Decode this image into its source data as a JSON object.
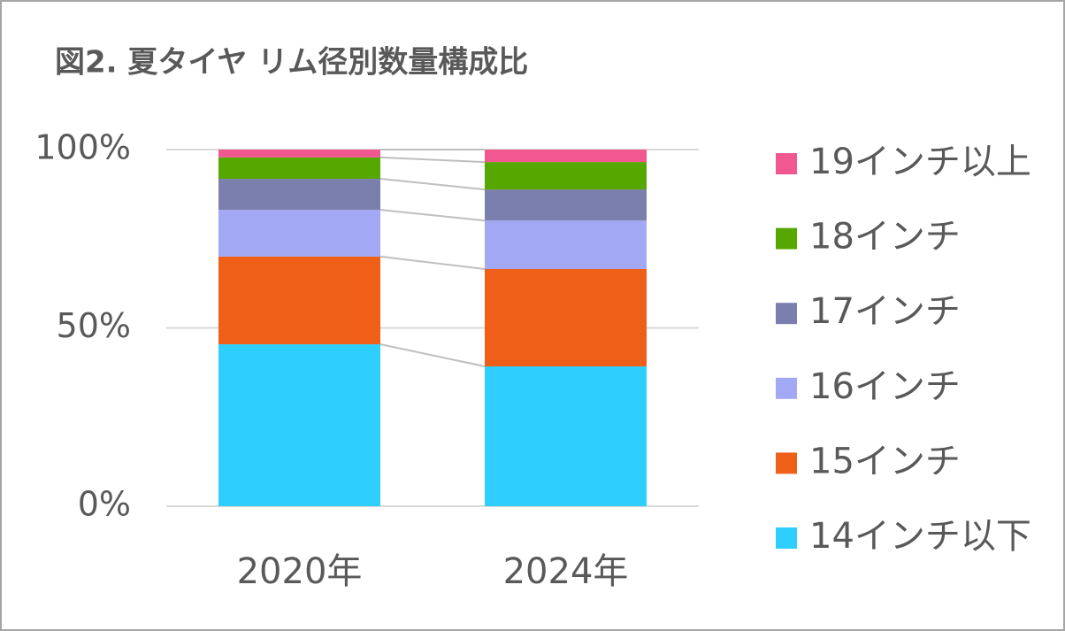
{
  "chart_data": {
    "type": "stacked_bar_100",
    "title": "図2. 夏タイヤ リム径別数量構成比",
    "categories": [
      "2020年",
      "2024年"
    ],
    "series": [
      {
        "name": "14インチ以下",
        "color": "#2ecfff",
        "values": [
          45.4,
          39.2
        ]
      },
      {
        "name": "15インチ",
        "color": "#ef5f18",
        "values": [
          24.6,
          27.3
        ]
      },
      {
        "name": "16インチ",
        "color": "#a3a8f5",
        "values": [
          13.1,
          13.6
        ]
      },
      {
        "name": "17インチ",
        "color": "#7a7fae",
        "values": [
          8.7,
          8.7
        ]
      },
      {
        "name": "18インチ",
        "color": "#56a800",
        "values": [
          6.0,
          7.7
        ]
      },
      {
        "name": "19インチ以上",
        "color": "#f0588f",
        "values": [
          2.2,
          3.5
        ]
      }
    ],
    "ylim": [
      0,
      100
    ],
    "yticks": [
      {
        "value": 0,
        "label": "0%"
      },
      {
        "value": 50,
        "label": "50%"
      },
      {
        "value": 100,
        "label": "100%"
      }
    ],
    "grid": true,
    "legend": "right"
  }
}
